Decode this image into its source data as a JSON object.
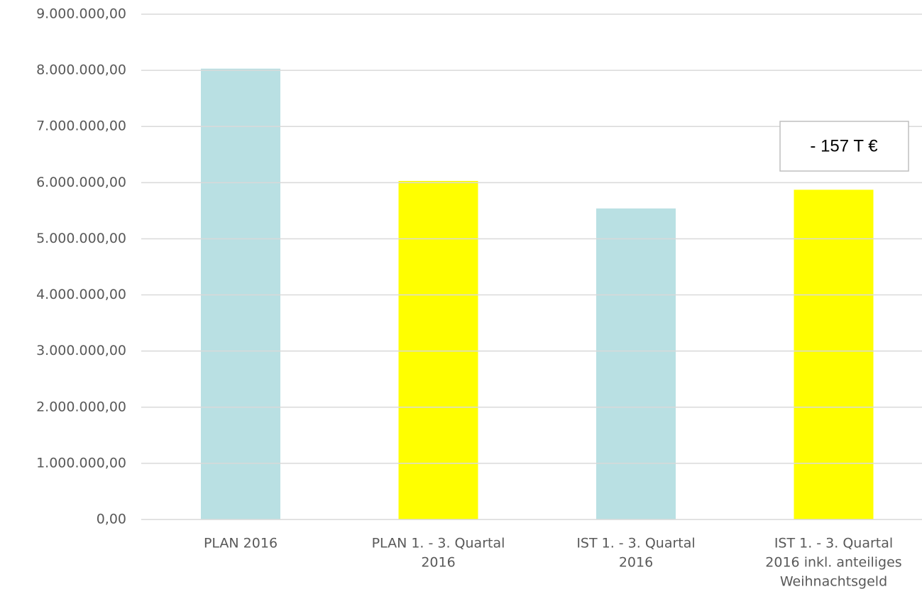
{
  "chart_data": {
    "type": "bar",
    "categories": [
      [
        "PLAN 2016"
      ],
      [
        "PLAN 1. - 3. Quartal",
        "2016"
      ],
      [
        "IST 1. - 3. Quartal",
        "2016"
      ],
      [
        "IST 1. - 3. Quartal",
        "2016 inkl. anteiliges",
        "Weihnachtsgeld"
      ]
    ],
    "values": [
      8030000,
      6030000,
      5540000,
      5873000
    ],
    "colors": [
      "#b9e0e3",
      "#ffff00",
      "#b9e0e3",
      "#ffff00"
    ],
    "ylim": [
      0,
      9000000
    ],
    "yticks": [
      {
        "value": 0,
        "label": "0,00"
      },
      {
        "value": 1000000,
        "label": "1.000.000,00"
      },
      {
        "value": 2000000,
        "label": "2.000.000,00"
      },
      {
        "value": 3000000,
        "label": "3.000.000,00"
      },
      {
        "value": 4000000,
        "label": "4.000.000,00"
      },
      {
        "value": 5000000,
        "label": "5.000.000,00"
      },
      {
        "value": 6000000,
        "label": "6.000.000,00"
      },
      {
        "value": 7000000,
        "label": "7.000.000,00"
      },
      {
        "value": 8000000,
        "label": "8.000.000,00"
      },
      {
        "value": 9000000,
        "label": "9.000.000,00"
      }
    ],
    "grid": true,
    "annotation": "- 157 T €"
  }
}
